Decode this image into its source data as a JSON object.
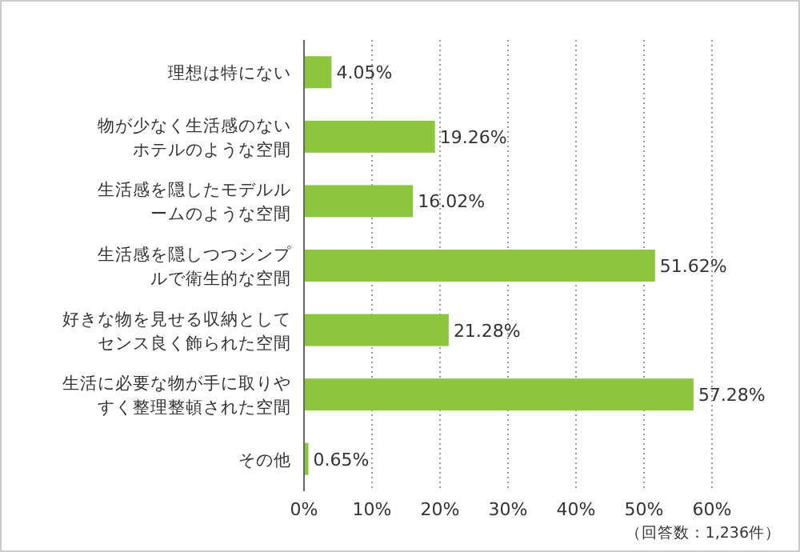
{
  "chart_data": {
    "type": "bar",
    "orientation": "horizontal",
    "categories": [
      "理想は特にない",
      "物が少なく生活感のないホテルのような空間",
      "生活感を隠したモデルルームのような空間",
      "生活感を隠しつつシンプルで衛生的な空間",
      "好きな物を見せる収納としてセンス良く飾られた空間",
      "生活に必要な物が手に取りやすく整理整頓された空間",
      "その他"
    ],
    "values": [
      4.05,
      19.26,
      16.02,
      51.62,
      21.28,
      57.28,
      0.65
    ],
    "value_labels": [
      "4.05%",
      "19.26%",
      "16.02%",
      "51.62%",
      "21.28%",
      "57.28%",
      "0.65%"
    ],
    "color": "#8cc63f",
    "xlim": [
      0,
      60
    ],
    "xticks": [
      {
        "value": 0,
        "label": "0%"
      },
      {
        "value": 10,
        "label": "10%"
      },
      {
        "value": 20,
        "label": "20%"
      },
      {
        "value": 30,
        "label": "30%"
      },
      {
        "value": 40,
        "label": "40%"
      },
      {
        "value": 50,
        "label": "50%"
      },
      {
        "value": 60,
        "label": "60%"
      }
    ],
    "grid": "x",
    "annotations": [
      "（回答数：1,236件）"
    ]
  }
}
